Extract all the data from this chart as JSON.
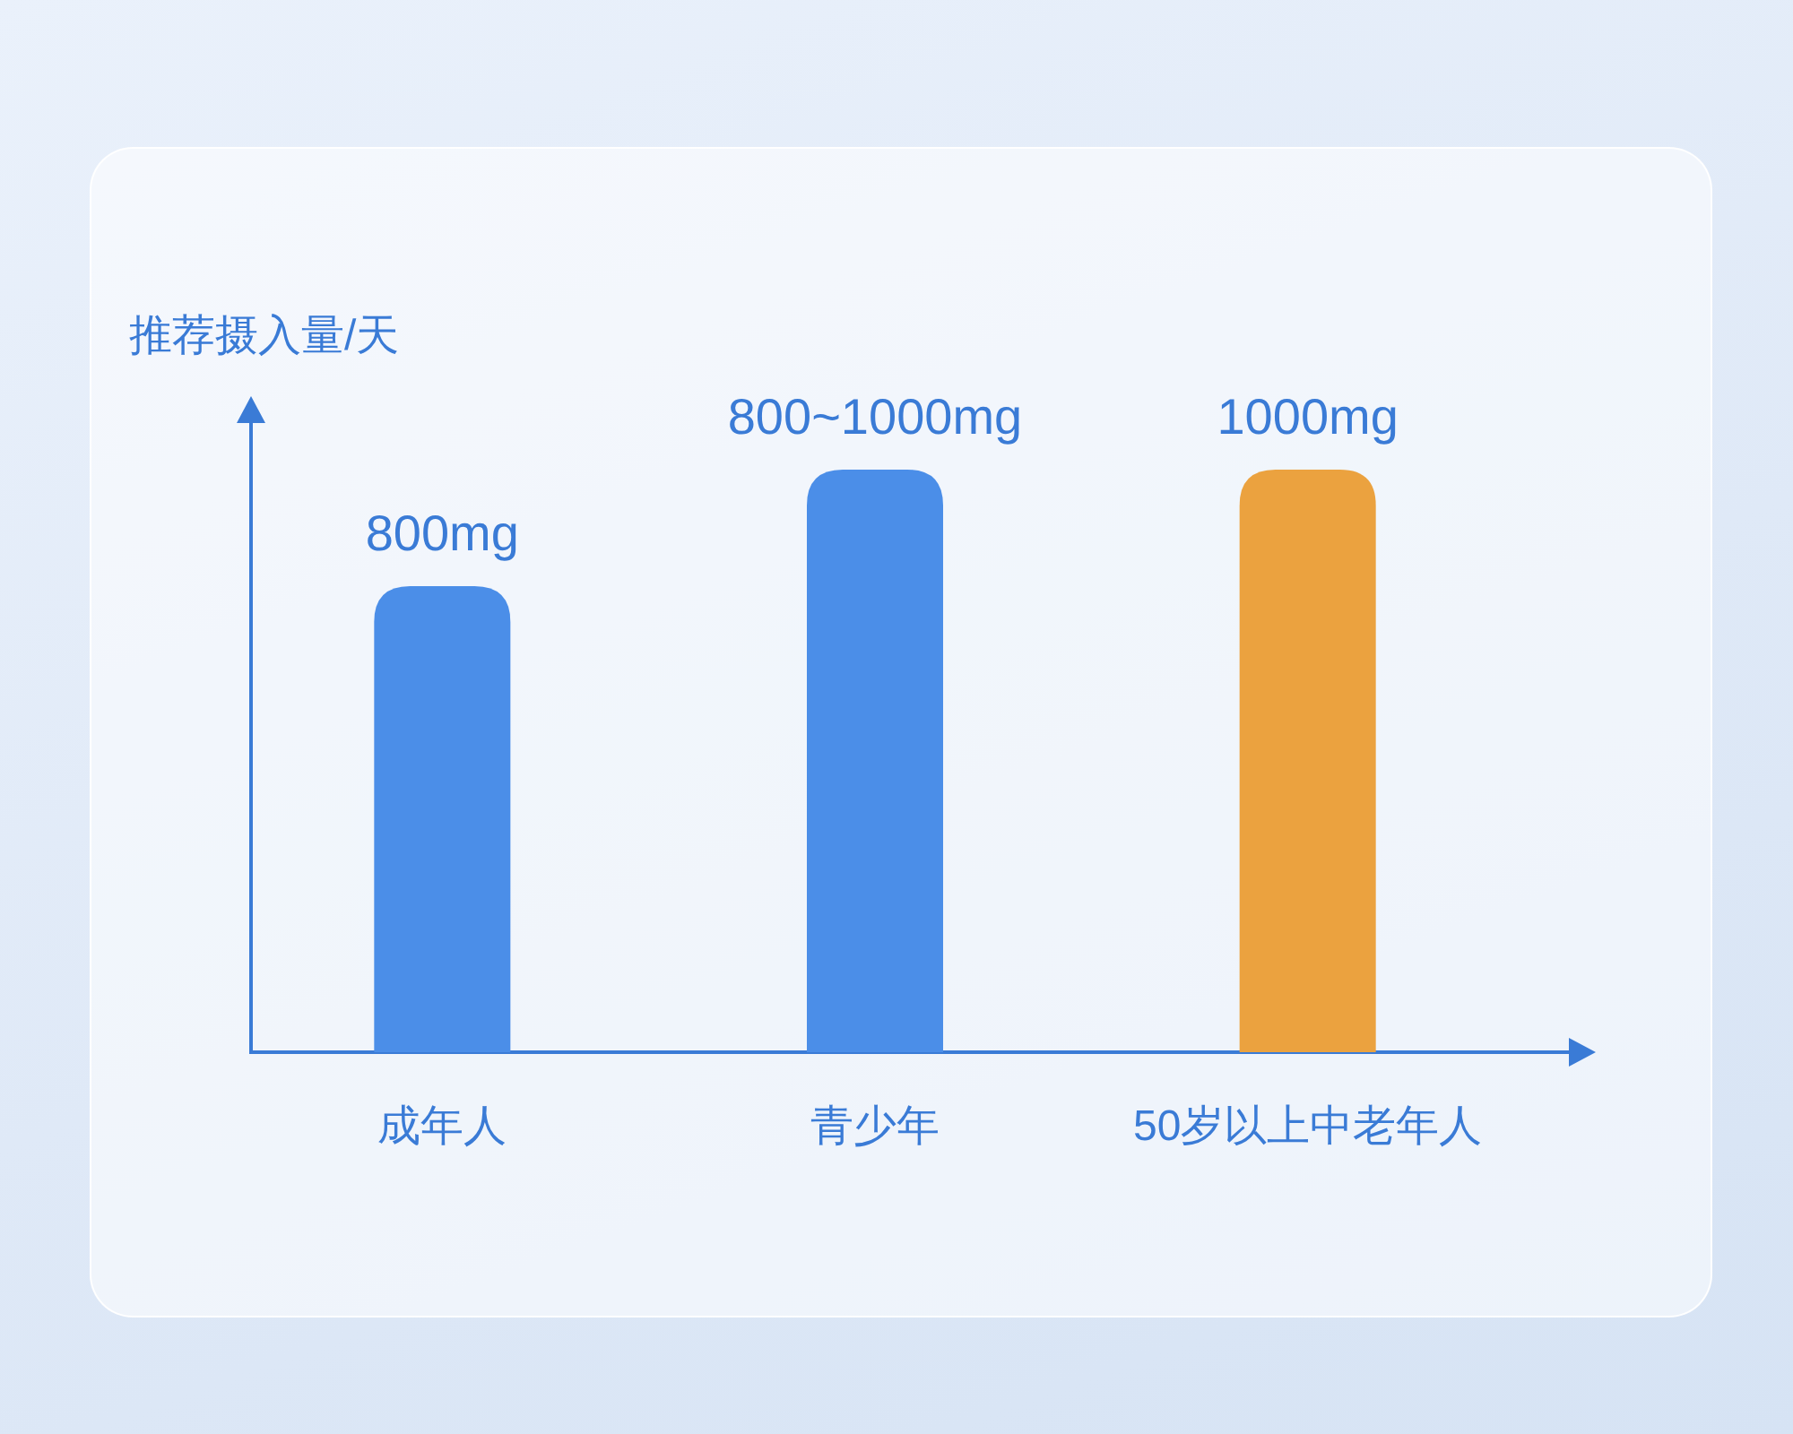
{
  "chart_data": {
    "type": "bar",
    "ylabel": "推荐摄入量/天",
    "categories": [
      "成年人",
      "青少年",
      "50岁以上中老年人"
    ],
    "values": [
      800,
      1000,
      1000
    ],
    "colors": [
      "#4b8ee8",
      "#4b8ee8",
      "#eba23f"
    ],
    "value_labels": [
      "800mg",
      "800~1000mg",
      "1000mg"
    ]
  }
}
